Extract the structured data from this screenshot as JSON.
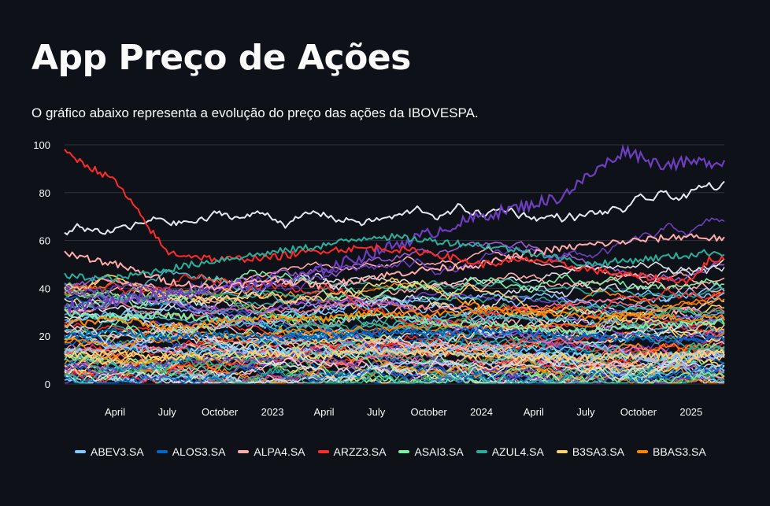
{
  "header": {
    "title": "App Preço de Ações",
    "description": "O gráfico abaixo representa a evolução do preço das ações da IBOVESPA."
  },
  "chart_data": {
    "type": "line",
    "title": "",
    "xlabel": "",
    "ylabel": "",
    "x_range": [
      "2022-01-03",
      "2025-02-28"
    ],
    "ylim": [
      0,
      100
    ],
    "y_ticks": [
      0,
      20,
      40,
      60,
      80,
      100
    ],
    "x_ticks": [
      {
        "date": "2022-04-01",
        "label": "April"
      },
      {
        "date": "2022-07-01",
        "label": "July"
      },
      {
        "date": "2022-10-01",
        "label": "October"
      },
      {
        "date": "2023-01-01",
        "label": "2023"
      },
      {
        "date": "2023-04-01",
        "label": "April"
      },
      {
        "date": "2023-07-01",
        "label": "July"
      },
      {
        "date": "2023-10-01",
        "label": "October"
      },
      {
        "date": "2024-01-01",
        "label": "2024"
      },
      {
        "date": "2024-04-01",
        "label": "April"
      },
      {
        "date": "2024-07-01",
        "label": "July"
      },
      {
        "date": "2024-10-01",
        "label": "October"
      },
      {
        "date": "2025-01-01",
        "label": "2025"
      }
    ],
    "grid": true,
    "legend_position": "bottom",
    "series": [
      {
        "name": "ABEV3.SA",
        "color": "#83c9ff",
        "x": [
          "2022-01",
          "2022-04",
          "2022-07",
          "2022-10",
          "2023-01",
          "2023-04",
          "2023-07",
          "2023-10",
          "2024-01",
          "2024-04",
          "2024-07",
          "2024-10",
          "2025-01",
          "2025-02"
        ],
        "values": [
          14,
          15,
          14,
          13,
          14,
          13,
          14,
          13,
          13,
          12,
          12,
          11,
          12,
          12
        ]
      },
      {
        "name": "ALOS3.SA",
        "color": "#0068c9",
        "x": [
          "2022-01",
          "2022-04",
          "2022-07",
          "2022-10",
          "2023-01",
          "2023-04",
          "2023-07",
          "2023-10",
          "2024-01",
          "2024-04",
          "2024-07",
          "2024-10",
          "2025-01",
          "2025-02"
        ],
        "values": [
          20,
          22,
          19,
          21,
          20,
          19,
          22,
          21,
          23,
          21,
          20,
          19,
          18,
          19
        ]
      },
      {
        "name": "ALPA4.SA",
        "color": "#ffabab",
        "x": [
          "2022-01",
          "2022-04",
          "2022-07",
          "2022-10",
          "2023-01",
          "2023-04",
          "2023-07",
          "2023-10",
          "2024-01",
          "2024-04",
          "2024-07",
          "2024-10",
          "2025-01",
          "2025-02"
        ],
        "values": [
          55,
          50,
          43,
          40,
          44,
          41,
          45,
          48,
          50,
          55,
          58,
          60,
          62,
          61
        ]
      },
      {
        "name": "ARZZ3.SA",
        "color": "#ff2b2b",
        "x": [
          "2022-01",
          "2022-04",
          "2022-07",
          "2022-10",
          "2023-01",
          "2023-04",
          "2023-07",
          "2023-10",
          "2024-01",
          "2024-04",
          "2024-07",
          "2024-10",
          "2025-01",
          "2025-02"
        ],
        "values": [
          97,
          85,
          55,
          52,
          53,
          56,
          57,
          55,
          50,
          52,
          48,
          45,
          43,
          52
        ]
      },
      {
        "name": "ASAI3.SA",
        "color": "#7defa1",
        "x": [
          "2022-01",
          "2022-04",
          "2022-07",
          "2022-10",
          "2023-01",
          "2023-04",
          "2023-07",
          "2023-10",
          "2024-01",
          "2024-04",
          "2024-07",
          "2024-10",
          "2025-01",
          "2025-02"
        ],
        "values": [
          30,
          28,
          29,
          27,
          28,
          27,
          29,
          26,
          25,
          23,
          22,
          24,
          25,
          26
        ]
      },
      {
        "name": "AZUL4.SA",
        "color": "#29b09d",
        "x": [
          "2022-01",
          "2022-04",
          "2022-07",
          "2022-10",
          "2023-01",
          "2023-04",
          "2023-07",
          "2023-10",
          "2024-01",
          "2024-04",
          "2024-07",
          "2024-10",
          "2025-01",
          "2025-02"
        ],
        "values": [
          45,
          44,
          48,
          52,
          55,
          58,
          62,
          60,
          58,
          55,
          50,
          52,
          54,
          55
        ]
      },
      {
        "name": "B3SA3.SA",
        "color": "#ffd16a",
        "x": [
          "2022-01",
          "2022-04",
          "2022-07",
          "2022-10",
          "2023-01",
          "2023-04",
          "2023-07",
          "2023-10",
          "2024-01",
          "2024-04",
          "2024-07",
          "2024-10",
          "2025-01",
          "2025-02"
        ],
        "values": [
          12,
          13,
          11,
          12,
          13,
          12,
          14,
          13,
          12,
          11,
          11,
          12,
          12,
          13
        ]
      },
      {
        "name": "BBAS3.SA",
        "color": "#ff8700",
        "x": [
          "2022-01",
          "2022-04",
          "2022-07",
          "2022-10",
          "2023-01",
          "2023-04",
          "2023-07",
          "2023-10",
          "2024-01",
          "2024-04",
          "2024-07",
          "2024-10",
          "2025-01",
          "2025-02"
        ],
        "values": [
          25,
          27,
          24,
          26,
          28,
          27,
          30,
          29,
          31,
          30,
          28,
          29,
          27,
          28
        ]
      }
    ]
  }
}
